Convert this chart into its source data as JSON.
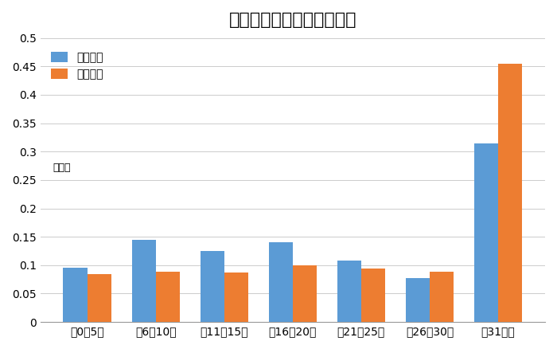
{
  "title": "成約物件と在庫物件の割合",
  "ylabel": "（％）",
  "categories": [
    "筥0～5年",
    "筥6～10年",
    "筥11～15年",
    "筥16～20年",
    "筥21～25年",
    "筥26～30年",
    "筥31年～"
  ],
  "series": [
    {
      "name": "成約物件",
      "color": "#5B9BD5",
      "values": [
        0.095,
        0.145,
        0.125,
        0.14,
        0.108,
        0.078,
        0.315
      ]
    },
    {
      "name": "在庫物件",
      "color": "#ED7D31",
      "values": [
        0.085,
        0.088,
        0.087,
        0.1,
        0.094,
        0.088,
        0.455
      ]
    }
  ],
  "ylim": [
    0,
    0.5
  ],
  "yticks": [
    0,
    0.05,
    0.1,
    0.15,
    0.2,
    0.25,
    0.3,
    0.35,
    0.4,
    0.45,
    0.5
  ],
  "background_color": "#ffffff",
  "title_fontsize": 16,
  "legend_fontsize": 10,
  "tick_fontsize": 10,
  "bar_width": 0.35
}
